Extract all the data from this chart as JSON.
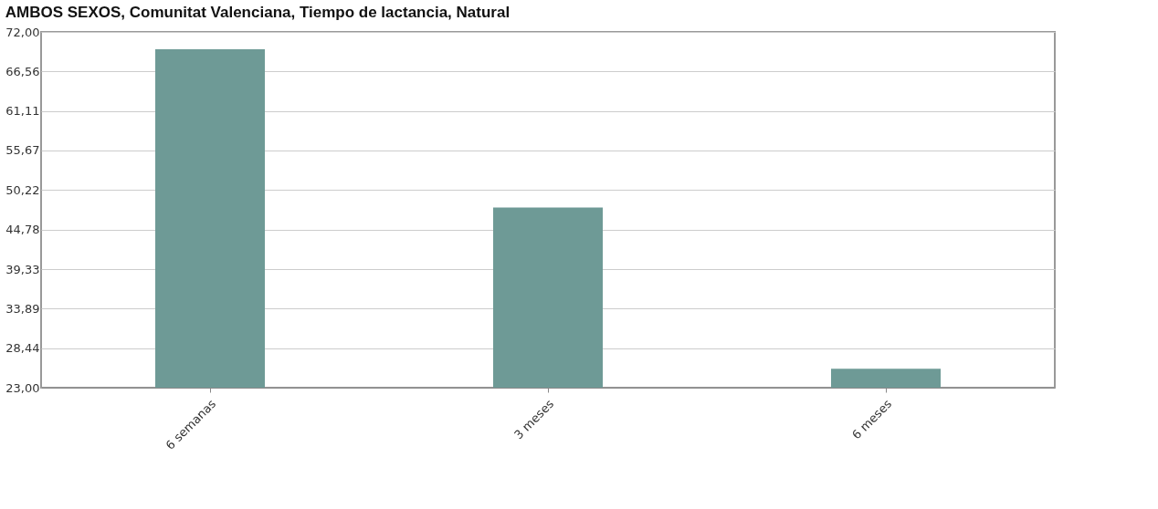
{
  "chart_data": {
    "type": "bar",
    "title": "AMBOS SEXOS, Comunitat Valenciana, Tiempo de lactancia, Natural",
    "categories": [
      "6 semanas",
      "3 meses",
      "6 meses"
    ],
    "values": [
      69.6,
      47.8,
      25.6
    ],
    "color": "#6e9a96",
    "ylim": [
      23,
      72
    ],
    "yticks": [
      {
        "value": 23,
        "label": "23,00"
      },
      {
        "value": 28.44,
        "label": "28,44"
      },
      {
        "value": 33.89,
        "label": "33,89"
      },
      {
        "value": 39.33,
        "label": "39,33"
      },
      {
        "value": 44.78,
        "label": "44,78"
      },
      {
        "value": 50.22,
        "label": "50,22"
      },
      {
        "value": 55.67,
        "label": "55,67"
      },
      {
        "value": 61.11,
        "label": "61,11"
      },
      {
        "value": 66.56,
        "label": "66,56"
      },
      {
        "value": 72,
        "label": "72,00"
      }
    ],
    "grid": "y"
  }
}
